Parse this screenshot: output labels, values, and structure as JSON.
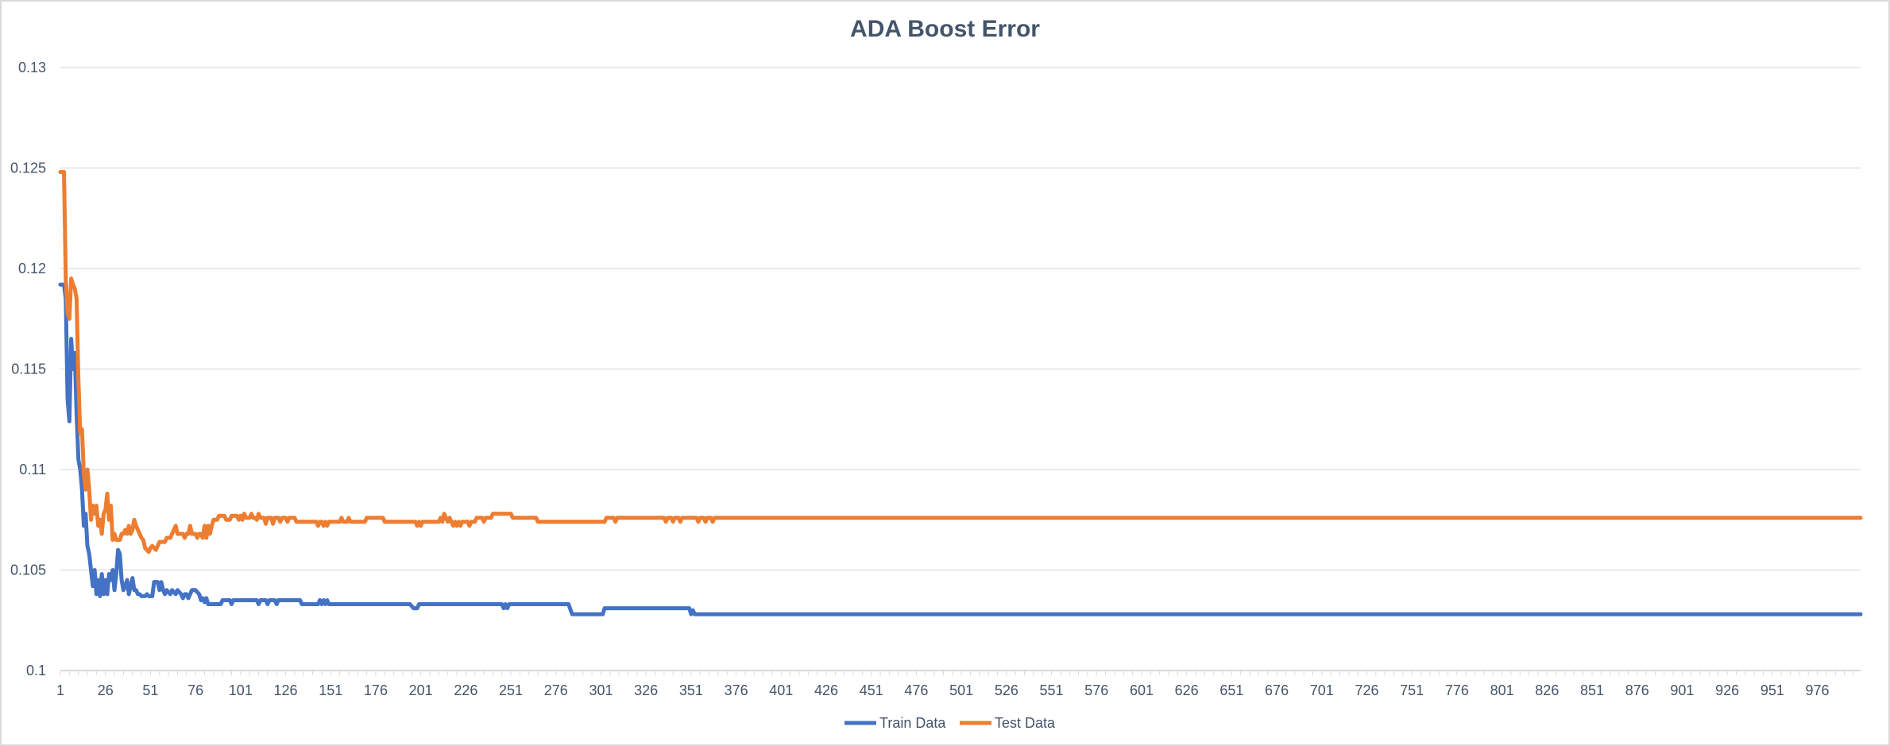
{
  "chart_data": {
    "type": "line",
    "title": "ADA Boost Error",
    "xlabel": "",
    "ylabel": "",
    "xlim": [
      1,
      1000
    ],
    "ylim": [
      0.1,
      0.13
    ],
    "yticks": [
      0.1,
      0.105,
      0.11,
      0.115,
      0.12,
      0.125,
      0.13
    ],
    "ytick_labels": [
      "0.1",
      "0.105",
      "0.11",
      "0.115",
      "0.12",
      "0.125",
      "0.13"
    ],
    "xtick_labels": [
      "1",
      "26",
      "51",
      "76",
      "101",
      "126",
      "151",
      "176",
      "201",
      "226",
      "251",
      "276",
      "301",
      "326",
      "351",
      "376",
      "401",
      "426",
      "451",
      "476",
      "501",
      "526",
      "551",
      "576",
      "601",
      "626",
      "651",
      "676",
      "701",
      "726",
      "751",
      "776",
      "801",
      "826",
      "851",
      "876",
      "901",
      "926",
      "951",
      "976"
    ],
    "grid": true,
    "legend_position": "bottom",
    "series": [
      {
        "name": "Train Data",
        "color": "#4472c4",
        "points": [
          [
            1,
            0.1192
          ],
          [
            3,
            0.1192
          ],
          [
            4,
            0.1185
          ],
          [
            5,
            0.1135
          ],
          [
            6,
            0.1124
          ],
          [
            7,
            0.1165
          ],
          [
            8,
            0.115
          ],
          [
            9,
            0.1158
          ],
          [
            10,
            0.1128
          ],
          [
            11,
            0.1105
          ],
          [
            12,
            0.11
          ],
          [
            13,
            0.109
          ],
          [
            14,
            0.1072
          ],
          [
            15,
            0.1078
          ],
          [
            16,
            0.1062
          ],
          [
            17,
            0.1058
          ],
          [
            18,
            0.105
          ],
          [
            19,
            0.1042
          ],
          [
            20,
            0.105
          ],
          [
            21,
            0.1038
          ],
          [
            22,
            0.1045
          ],
          [
            23,
            0.1037
          ],
          [
            24,
            0.1048
          ],
          [
            25,
            0.1038
          ],
          [
            26,
            0.1045
          ],
          [
            27,
            0.1038
          ],
          [
            28,
            0.1048
          ],
          [
            29,
            0.1045
          ],
          [
            30,
            0.105
          ],
          [
            31,
            0.104
          ],
          [
            32,
            0.1048
          ],
          [
            33,
            0.106
          ],
          [
            34,
            0.1058
          ],
          [
            35,
            0.1045
          ],
          [
            36,
            0.104
          ],
          [
            37,
            0.1042
          ],
          [
            38,
            0.1045
          ],
          [
            39,
            0.1038
          ],
          [
            40,
            0.1042
          ],
          [
            41,
            0.1046
          ],
          [
            42,
            0.104
          ],
          [
            43,
            0.104
          ],
          [
            44,
            0.1038
          ],
          [
            45,
            0.1038
          ],
          [
            46,
            0.1037
          ],
          [
            48,
            0.1037
          ],
          [
            49,
            0.1038
          ],
          [
            50,
            0.1037
          ],
          [
            52,
            0.1037
          ],
          [
            53,
            0.1044
          ],
          [
            55,
            0.1044
          ],
          [
            56,
            0.104
          ],
          [
            57,
            0.1044
          ],
          [
            58,
            0.104
          ],
          [
            59,
            0.1038
          ],
          [
            60,
            0.104
          ],
          [
            62,
            0.1038
          ],
          [
            63,
            0.104
          ],
          [
            65,
            0.1038
          ],
          [
            66,
            0.104
          ],
          [
            68,
            0.1038
          ],
          [
            69,
            0.1036
          ],
          [
            70,
            0.1038
          ],
          [
            71,
            0.1038
          ],
          [
            72,
            0.1036
          ],
          [
            73,
            0.1038
          ],
          [
            74,
            0.104
          ],
          [
            76,
            0.104
          ],
          [
            78,
            0.1038
          ],
          [
            79,
            0.1035
          ],
          [
            80,
            0.1036
          ],
          [
            81,
            0.1034
          ],
          [
            82,
            0.1036
          ],
          [
            83,
            0.1033
          ],
          [
            90,
            0.1033
          ],
          [
            91,
            0.1035
          ],
          [
            95,
            0.1035
          ],
          [
            96,
            0.1033
          ],
          [
            97,
            0.1035
          ],
          [
            110,
            0.1035
          ],
          [
            111,
            0.1033
          ],
          [
            112,
            0.1035
          ],
          [
            115,
            0.1035
          ],
          [
            116,
            0.1033
          ],
          [
            117,
            0.1035
          ],
          [
            120,
            0.1035
          ],
          [
            121,
            0.1033
          ],
          [
            122,
            0.1035
          ],
          [
            134,
            0.1035
          ],
          [
            135,
            0.1033
          ],
          [
            144,
            0.1033
          ],
          [
            145,
            0.1035
          ],
          [
            146,
            0.1033
          ],
          [
            147,
            0.1035
          ],
          [
            148,
            0.1033
          ],
          [
            149,
            0.1035
          ],
          [
            150,
            0.1033
          ],
          [
            195,
            0.1033
          ],
          [
            197,
            0.1031
          ],
          [
            199,
            0.1031
          ],
          [
            200,
            0.1033
          ],
          [
            246,
            0.1033
          ],
          [
            247,
            0.1031
          ],
          [
            248,
            0.1033
          ],
          [
            249,
            0.1031
          ],
          [
            250,
            0.1033
          ],
          [
            283,
            0.1033
          ],
          [
            285,
            0.1028
          ],
          [
            302,
            0.1028
          ],
          [
            303,
            0.1031
          ],
          [
            350,
            0.1031
          ],
          [
            351,
            0.1028
          ],
          [
            352,
            0.103
          ],
          [
            353,
            0.1028
          ],
          [
            1000,
            0.1028
          ]
        ]
      },
      {
        "name": "Test Data",
        "color": "#ed7d31",
        "points": [
          [
            1,
            0.1248
          ],
          [
            3,
            0.1248
          ],
          [
            4,
            0.1195
          ],
          [
            5,
            0.1178
          ],
          [
            6,
            0.1175
          ],
          [
            7,
            0.1195
          ],
          [
            8,
            0.1192
          ],
          [
            9,
            0.119
          ],
          [
            10,
            0.1185
          ],
          [
            11,
            0.1145
          ],
          [
            12,
            0.1118
          ],
          [
            13,
            0.112
          ],
          [
            14,
            0.1098
          ],
          [
            15,
            0.109
          ],
          [
            16,
            0.11
          ],
          [
            17,
            0.109
          ],
          [
            18,
            0.1075
          ],
          [
            19,
            0.1082
          ],
          [
            20,
            0.1078
          ],
          [
            21,
            0.1082
          ],
          [
            22,
            0.1072
          ],
          [
            23,
            0.1075
          ],
          [
            24,
            0.1068
          ],
          [
            25,
            0.1078
          ],
          [
            26,
            0.108
          ],
          [
            27,
            0.1088
          ],
          [
            28,
            0.1075
          ],
          [
            29,
            0.1082
          ],
          [
            30,
            0.1065
          ],
          [
            31,
            0.1068
          ],
          [
            32,
            0.1065
          ],
          [
            34,
            0.1065
          ],
          [
            35,
            0.1068
          ],
          [
            36,
            0.1068
          ],
          [
            37,
            0.107
          ],
          [
            38,
            0.1068
          ],
          [
            39,
            0.1072
          ],
          [
            40,
            0.1068
          ],
          [
            41,
            0.107
          ],
          [
            42,
            0.1075
          ],
          [
            43,
            0.1072
          ],
          [
            44,
            0.107
          ],
          [
            45,
            0.1068
          ],
          [
            46,
            0.1066
          ],
          [
            47,
            0.1065
          ],
          [
            48,
            0.1061
          ],
          [
            50,
            0.1059
          ],
          [
            51,
            0.1061
          ],
          [
            52,
            0.1062
          ],
          [
            53,
            0.1061
          ],
          [
            54,
            0.106
          ],
          [
            55,
            0.1062
          ],
          [
            56,
            0.1064
          ],
          [
            59,
            0.1064
          ],
          [
            60,
            0.1066
          ],
          [
            62,
            0.1066
          ],
          [
            63,
            0.1068
          ],
          [
            64,
            0.107
          ],
          [
            65,
            0.1072
          ],
          [
            66,
            0.1068
          ],
          [
            69,
            0.1068
          ],
          [
            70,
            0.1066
          ],
          [
            71,
            0.1068
          ],
          [
            72,
            0.1068
          ],
          [
            73,
            0.1072
          ],
          [
            74,
            0.1068
          ],
          [
            76,
            0.1068
          ],
          [
            77,
            0.1066
          ],
          [
            78,
            0.1068
          ],
          [
            79,
            0.1068
          ],
          [
            80,
            0.1066
          ],
          [
            81,
            0.1072
          ],
          [
            82,
            0.1066
          ],
          [
            83,
            0.1072
          ],
          [
            84,
            0.1068
          ],
          [
            85,
            0.1072
          ],
          [
            86,
            0.1075
          ],
          [
            88,
            0.1075
          ],
          [
            89,
            0.1077
          ],
          [
            92,
            0.1077
          ],
          [
            93,
            0.1075
          ],
          [
            95,
            0.1075
          ],
          [
            96,
            0.1077
          ],
          [
            99,
            0.1077
          ],
          [
            100,
            0.1075
          ],
          [
            101,
            0.1077
          ],
          [
            102,
            0.1075
          ],
          [
            103,
            0.1078
          ],
          [
            104,
            0.1076
          ],
          [
            106,
            0.1076
          ],
          [
            107,
            0.1078
          ],
          [
            108,
            0.1076
          ],
          [
            109,
            0.1076
          ],
          [
            110,
            0.1075
          ],
          [
            111,
            0.1078
          ],
          [
            112,
            0.1076
          ],
          [
            114,
            0.1076
          ],
          [
            115,
            0.1073
          ],
          [
            116,
            0.1076
          ],
          [
            118,
            0.1076
          ],
          [
            119,
            0.1073
          ],
          [
            120,
            0.1076
          ],
          [
            122,
            0.1076
          ],
          [
            123,
            0.1074
          ],
          [
            124,
            0.1076
          ],
          [
            126,
            0.1076
          ],
          [
            127,
            0.1074
          ],
          [
            128,
            0.1076
          ],
          [
            131,
            0.1076
          ],
          [
            132,
            0.1074
          ],
          [
            143,
            0.1074
          ],
          [
            144,
            0.1072
          ],
          [
            145,
            0.1074
          ],
          [
            146,
            0.1074
          ],
          [
            147,
            0.1072
          ],
          [
            148,
            0.1074
          ],
          [
            149,
            0.1072
          ],
          [
            150,
            0.1074
          ],
          [
            156,
            0.1074
          ],
          [
            157,
            0.1076
          ],
          [
            158,
            0.1074
          ],
          [
            160,
            0.1074
          ],
          [
            161,
            0.1076
          ],
          [
            162,
            0.1074
          ],
          [
            170,
            0.1074
          ],
          [
            171,
            0.1076
          ],
          [
            180,
            0.1076
          ],
          [
            181,
            0.1074
          ],
          [
            198,
            0.1074
          ],
          [
            199,
            0.1072
          ],
          [
            200,
            0.1074
          ],
          [
            201,
            0.1072
          ],
          [
            202,
            0.1074
          ],
          [
            211,
            0.1074
          ],
          [
            212,
            0.1076
          ],
          [
            213,
            0.1074
          ],
          [
            214,
            0.1078
          ],
          [
            215,
            0.1076
          ],
          [
            216,
            0.1074
          ],
          [
            217,
            0.1076
          ],
          [
            218,
            0.1074
          ],
          [
            219,
            0.1072
          ],
          [
            220,
            0.1074
          ],
          [
            221,
            0.1072
          ],
          [
            222,
            0.1074
          ],
          [
            223,
            0.1072
          ],
          [
            224,
            0.1074
          ],
          [
            227,
            0.1074
          ],
          [
            228,
            0.1072
          ],
          [
            229,
            0.1074
          ],
          [
            231,
            0.1074
          ],
          [
            232,
            0.1076
          ],
          [
            235,
            0.1076
          ],
          [
            236,
            0.1074
          ],
          [
            237,
            0.1076
          ],
          [
            240,
            0.1076
          ],
          [
            241,
            0.1078
          ],
          [
            251,
            0.1078
          ],
          [
            252,
            0.1076
          ],
          [
            265,
            0.1076
          ],
          [
            266,
            0.1074
          ],
          [
            303,
            0.1074
          ],
          [
            304,
            0.1076
          ],
          [
            308,
            0.1076
          ],
          [
            309,
            0.1074
          ],
          [
            310,
            0.1076
          ],
          [
            336,
            0.1076
          ],
          [
            337,
            0.1074
          ],
          [
            338,
            0.1076
          ],
          [
            340,
            0.1076
          ],
          [
            341,
            0.1074
          ],
          [
            342,
            0.1076
          ],
          [
            344,
            0.1076
          ],
          [
            345,
            0.1074
          ],
          [
            346,
            0.1076
          ],
          [
            354,
            0.1076
          ],
          [
            355,
            0.1074
          ],
          [
            356,
            0.1076
          ],
          [
            358,
            0.1076
          ],
          [
            359,
            0.1074
          ],
          [
            360,
            0.1076
          ],
          [
            362,
            0.1076
          ],
          [
            363,
            0.1074
          ],
          [
            364,
            0.1076
          ],
          [
            1000,
            0.1076
          ]
        ]
      }
    ]
  }
}
